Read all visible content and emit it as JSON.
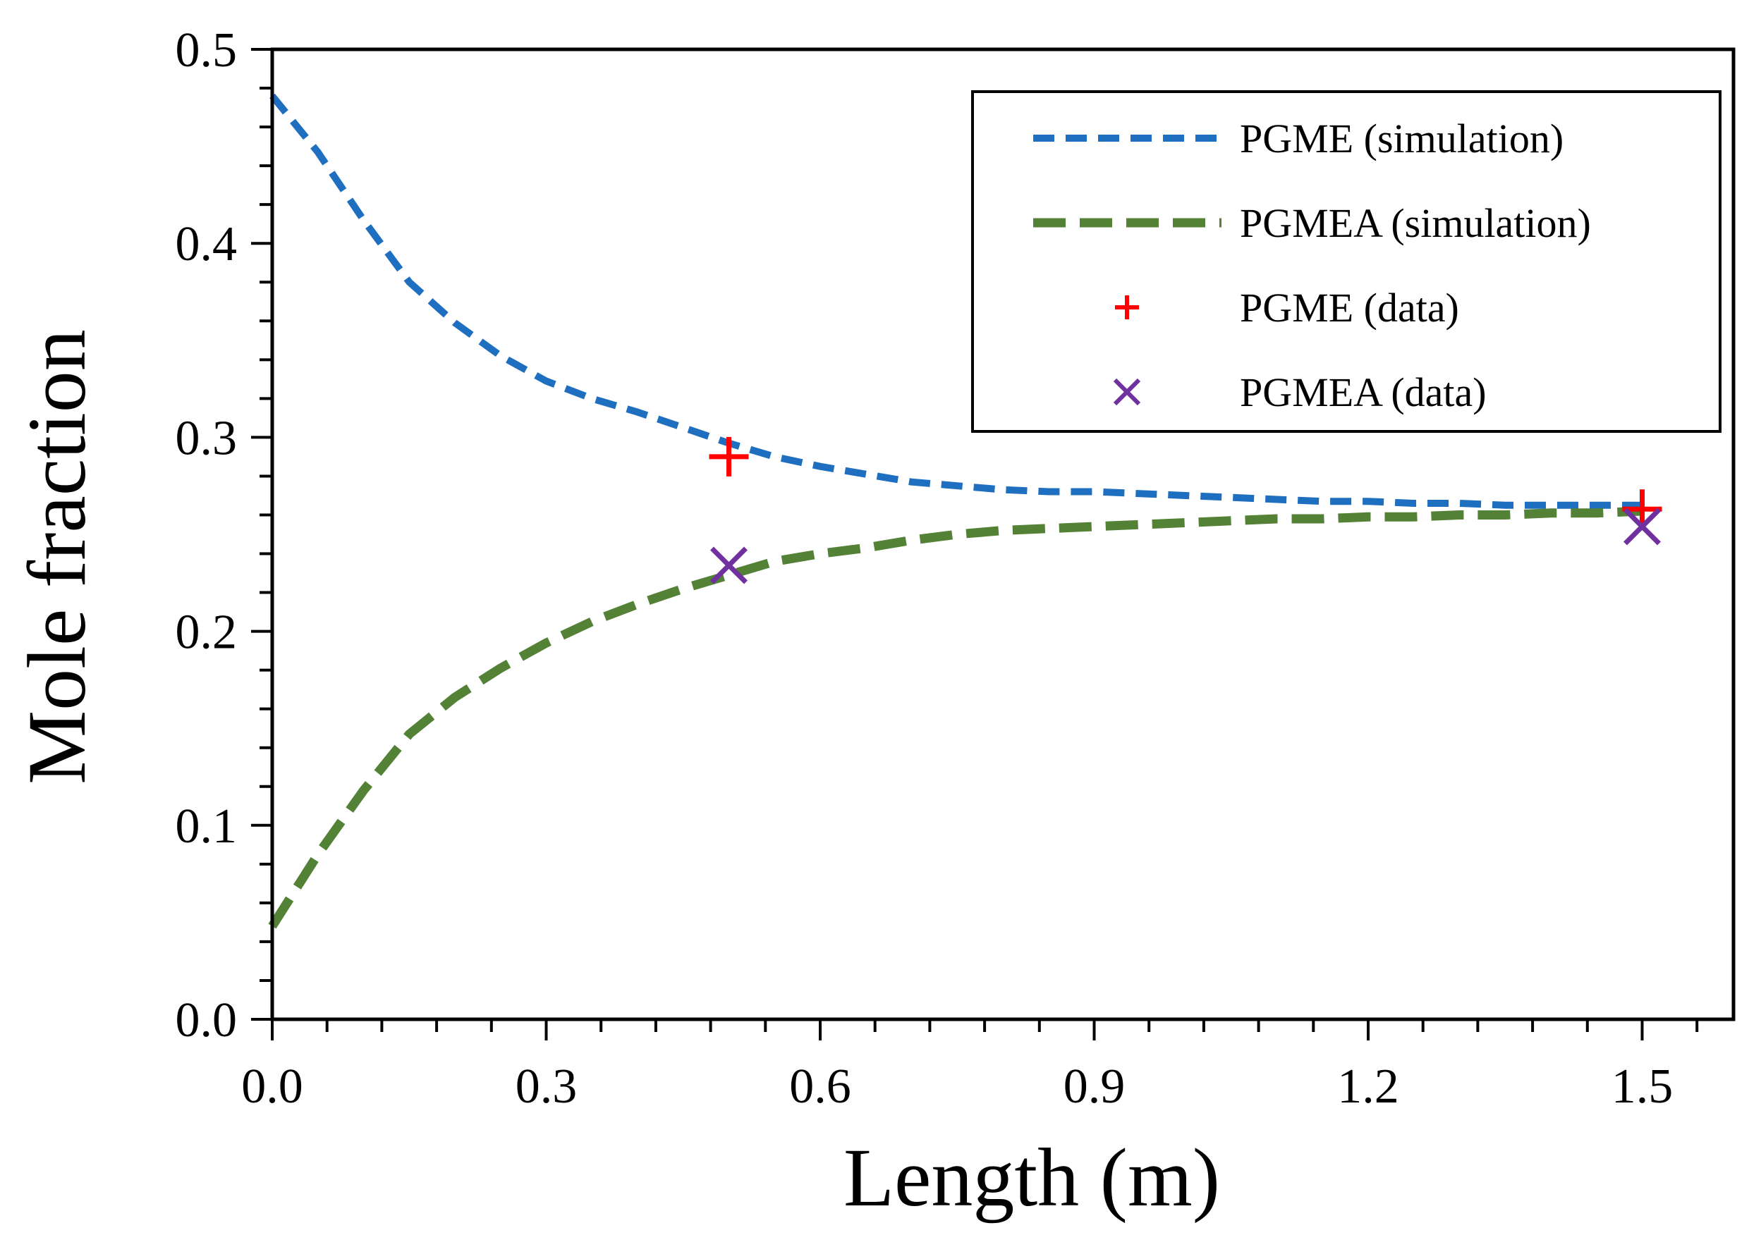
{
  "chart_data": {
    "type": "line",
    "xlabel": "Length (m)",
    "ylabel": "Mole fraction",
    "xlim": [
      0,
      1.6
    ],
    "ylim": [
      0,
      0.5
    ],
    "x_ticks": [
      "0.0",
      "0.3",
      "0.6",
      "0.9",
      "1.2",
      "1.5"
    ],
    "y_ticks": [
      "0.0",
      "0.1",
      "0.2",
      "0.3",
      "0.4",
      "0.5"
    ],
    "legend_position": "top-right",
    "series": [
      {
        "name": "PGME (simulation)",
        "kind": "line",
        "style": "dashed",
        "color": "#1f6fc1",
        "x": [
          0,
          0.05,
          0.1,
          0.15,
          0.2,
          0.25,
          0.3,
          0.35,
          0.4,
          0.45,
          0.5,
          0.55,
          0.6,
          0.65,
          0.7,
          0.75,
          0.8,
          0.85,
          0.9,
          0.95,
          1.0,
          1.05,
          1.1,
          1.15,
          1.2,
          1.25,
          1.3,
          1.35,
          1.4,
          1.45,
          1.5
        ],
        "y": [
          0.476,
          0.447,
          0.412,
          0.38,
          0.359,
          0.342,
          0.329,
          0.32,
          0.313,
          0.305,
          0.297,
          0.29,
          0.285,
          0.281,
          0.277,
          0.275,
          0.273,
          0.272,
          0.272,
          0.271,
          0.27,
          0.269,
          0.268,
          0.267,
          0.267,
          0.266,
          0.266,
          0.265,
          0.265,
          0.265,
          0.265
        ]
      },
      {
        "name": "PGMEA (simulation)",
        "kind": "line",
        "style": "dashed",
        "color": "#538135",
        "x": [
          0,
          0.05,
          0.1,
          0.15,
          0.2,
          0.25,
          0.3,
          0.35,
          0.4,
          0.45,
          0.5,
          0.55,
          0.6,
          0.65,
          0.7,
          0.75,
          0.8,
          0.85,
          0.9,
          0.95,
          1.0,
          1.05,
          1.1,
          1.15,
          1.2,
          1.25,
          1.3,
          1.35,
          1.4,
          1.45,
          1.5
        ],
        "y": [
          0.048,
          0.085,
          0.118,
          0.147,
          0.166,
          0.181,
          0.194,
          0.205,
          0.214,
          0.222,
          0.229,
          0.236,
          0.24,
          0.243,
          0.247,
          0.25,
          0.252,
          0.253,
          0.254,
          0.255,
          0.256,
          0.257,
          0.258,
          0.258,
          0.259,
          0.259,
          0.26,
          0.26,
          0.261,
          0.261,
          0.262
        ]
      },
      {
        "name": "PGME (data)",
        "kind": "marker",
        "marker": "plus",
        "color": "#ff0000",
        "x": [
          0.5,
          1.5
        ],
        "y": [
          0.29,
          0.263
        ]
      },
      {
        "name": "PGMEA (data)",
        "kind": "marker",
        "marker": "x",
        "color": "#7030a0",
        "x": [
          0.5,
          1.5
        ],
        "y": [
          0.234,
          0.254
        ]
      }
    ]
  }
}
